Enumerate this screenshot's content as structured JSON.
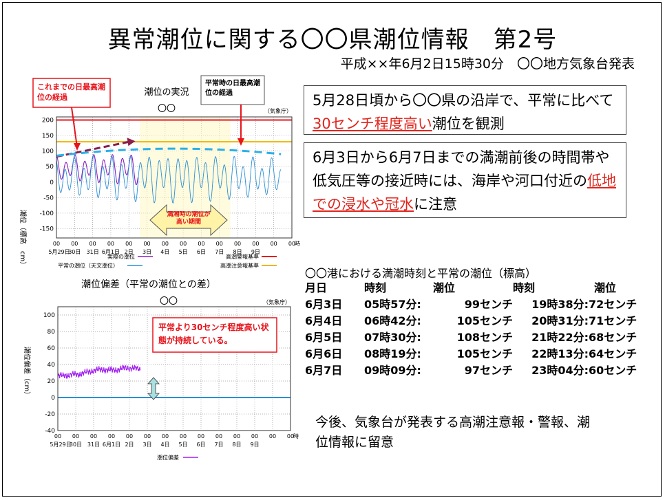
{
  "title": "異常潮位に関する〇〇県潮位情報　第2号",
  "subtitle": "平成××年6月2日15時30分　〇〇地方気象台発表",
  "box1": {
    "prefix": "5月28日頃から〇〇県の沿岸で、平常に比べて",
    "highlight": "30センチ程度高い",
    "suffix": "潮位を観測"
  },
  "box2": {
    "prefix": "6月3日から6月7日までの満潮前後の時間帯や低気圧等の接近時には、海岸や河口付近の",
    "highlight": "低地での浸水や冠水",
    "suffix": "に注意"
  },
  "table": {
    "title": "〇〇港における満潮時刻と平常の潮位（標高）",
    "headers": [
      "月日",
      "時刻",
      "潮位",
      "時刻",
      "潮位"
    ],
    "rows": [
      [
        "6月3日",
        "05時57分:",
        "99センチ",
        "19時38分:",
        "72センチ"
      ],
      [
        "6月4日",
        "06時42分:",
        "105センチ",
        "20時31分:",
        "71センチ"
      ],
      [
        "6月5日",
        "07時30分:",
        "108センチ",
        "21時22分:",
        "68センチ"
      ],
      [
        "6月6日",
        "08時19分:",
        "105センチ",
        "22時13分:",
        "64センチ"
      ],
      [
        "6月7日",
        "09時09分:",
        "97センチ",
        "23時04分:",
        "60センチ"
      ]
    ]
  },
  "advice": "今後、気象台が発表する高潮注意報・警報、潮位情報に留意",
  "colors": {
    "warning": "#e8141c",
    "caution": "#f0b400",
    "observed": "#8a1fc0",
    "astronomical": "#2a8fd6",
    "callout": "#e8141c",
    "band": "#fff7c0"
  },
  "chart_data": [
    {
      "type": "line",
      "title": "潮位の実況",
      "station": "〇〇",
      "source": "（気象庁）",
      "ylabel": "潮位（標高　cm）",
      "ylim": [
        -180,
        210
      ],
      "yticks": [
        200,
        150,
        100,
        50,
        0,
        -50,
        -100,
        -150
      ],
      "xlim": [
        0,
        13
      ],
      "x_hour_label": "00",
      "x_unit": "時",
      "x_day_labels": [
        "5月29日",
        "30日",
        "31日",
        "6月1日",
        "2日",
        "3日",
        "4日",
        "5日",
        "6日",
        "7日",
        "8日",
        "9日"
      ],
      "reference_lines": [
        {
          "name": "高潮警報基準",
          "value": 200,
          "color": "#e8141c"
        },
        {
          "name": "高潮注意報基準",
          "value": 130,
          "color": "#f0b400"
        }
      ],
      "series": [
        {
          "name": "実際の潮位",
          "color": "#8a1fc0",
          "x_range": [
            0,
            4.5
          ],
          "mean": 45,
          "amplitude": 48
        },
        {
          "name": "平常の潮位（天文潮位）",
          "color": "#2a8fd6",
          "x_range": [
            0,
            12.4
          ],
          "mean": 15,
          "amplitude": 72
        }
      ],
      "trend_lines": [
        {
          "name": "これまでの日最高潮位の経過",
          "x": [
            0,
            4.2
          ],
          "y": [
            82,
            132
          ],
          "color": "#8a1f4a"
        },
        {
          "name": "平常時の日最高潮位の経過",
          "x": [
            0,
            12.4
          ],
          "y": [
            85,
            110
          ],
          "color": "#2ab0e8"
        }
      ],
      "annotations": {
        "observed_peak": "これまでの日最高潮位の経過",
        "normal_peak": "平常時の日最高潮位の経過",
        "high_period": "満潮時の潮位が高い期間"
      },
      "legend": [
        "実際の潮位",
        "平常の潮位（天文潮位）",
        "高潮警報基準",
        "高潮注意報基準"
      ]
    },
    {
      "type": "line",
      "title": "潮位偏差（平常の潮位との差）",
      "station": "〇〇",
      "source": "（気象庁）",
      "ylabel": "潮位偏差（cm）",
      "ylim": [
        -40,
        110
      ],
      "yticks": [
        100,
        80,
        60,
        40,
        20,
        0,
        -20,
        -40
      ],
      "xlim": [
        0,
        13
      ],
      "x_hour_label": "00",
      "x_unit": "時",
      "x_day_labels": [
        "5月29日",
        "30日",
        "31日",
        "6月1日",
        "2日",
        "3日",
        "4日",
        "5日",
        "6日",
        "7日",
        "8日",
        "9日"
      ],
      "reference_lines": [
        {
          "name": "平常",
          "value": 0,
          "color": "#2a8fd6"
        }
      ],
      "series": [
        {
          "name": "潮位偏差",
          "color": "#a020f0",
          "x_range": [
            0,
            4.6
          ],
          "values": [
            26,
            27,
            28,
            30,
            33,
            34,
            33,
            35,
            36,
            34
          ]
        }
      ],
      "annotation": "平常より30センチ程度高い状態が持続している。",
      "legend": [
        "潮位偏差"
      ]
    }
  ]
}
